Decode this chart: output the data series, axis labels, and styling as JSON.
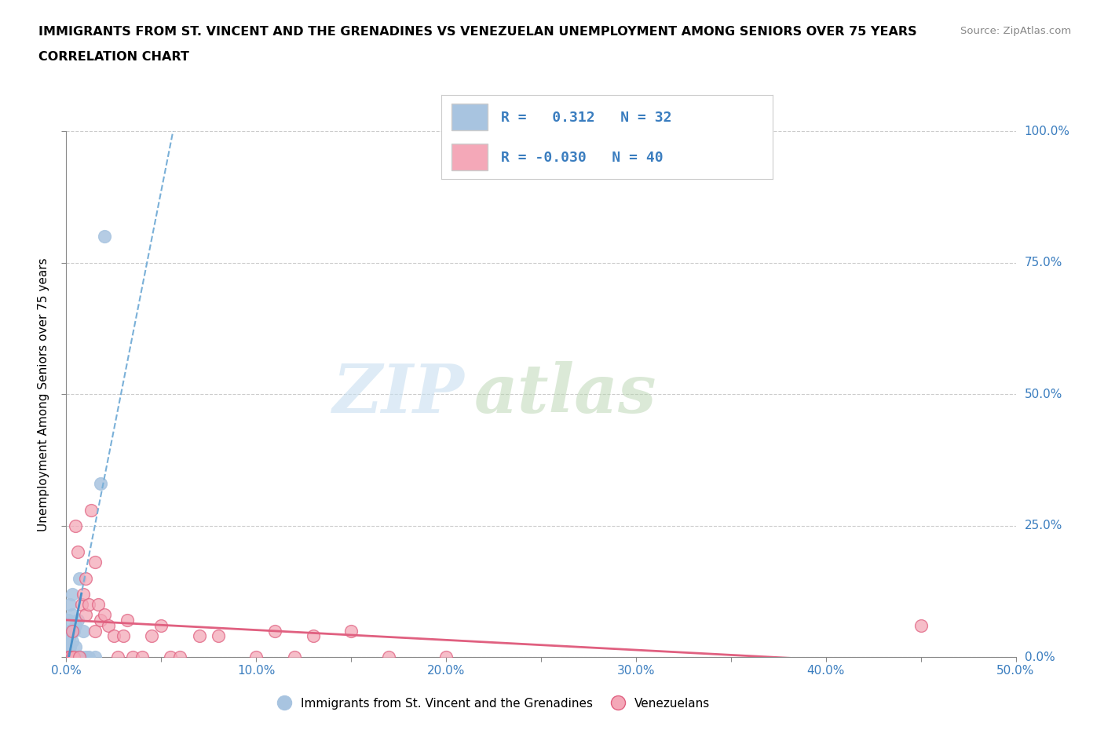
{
  "title_line1": "IMMIGRANTS FROM ST. VINCENT AND THE GRENADINES VS VENEZUELAN UNEMPLOYMENT AMONG SENIORS OVER 75 YEARS",
  "title_line2": "CORRELATION CHART",
  "source": "Source: ZipAtlas.com",
  "xlabel_ticks": [
    "0.0%",
    "",
    "10.0%",
    "",
    "20.0%",
    "",
    "30.0%",
    "",
    "40.0%",
    "",
    "50.0%"
  ],
  "xlabel_vals": [
    0.0,
    0.05,
    0.1,
    0.15,
    0.2,
    0.25,
    0.3,
    0.35,
    0.4,
    0.45,
    0.5
  ],
  "ylabel_ticks": [
    "0.0%",
    "25.0%",
    "50.0%",
    "75.0%",
    "100.0%"
  ],
  "ylabel_vals": [
    0.0,
    0.25,
    0.5,
    0.75,
    1.0
  ],
  "xlim": [
    0,
    0.5
  ],
  "ylim": [
    0,
    1.0
  ],
  "R_blue": 0.312,
  "N_blue": 32,
  "R_pink": -0.03,
  "N_pink": 40,
  "blue_color": "#a8c4e0",
  "blue_line_color": "#4a90c8",
  "blue_trend_dashed_color": "#7ab0d8",
  "pink_color": "#f4a8b8",
  "pink_line_color": "#e06080",
  "legend_label_blue": "Immigrants from St. Vincent and the Grenadines",
  "legend_label_pink": "Venezuelans",
  "watermark_zip": "ZIP",
  "watermark_atlas": "atlas",
  "blue_scatter_x": [
    0.0,
    0.0,
    0.0,
    0.0,
    0.001,
    0.001,
    0.001,
    0.001,
    0.001,
    0.002,
    0.002,
    0.002,
    0.002,
    0.003,
    0.003,
    0.003,
    0.003,
    0.004,
    0.004,
    0.005,
    0.005,
    0.005,
    0.006,
    0.006,
    0.007,
    0.008,
    0.009,
    0.01,
    0.012,
    0.015,
    0.018,
    0.02
  ],
  "blue_scatter_y": [
    0.0,
    0.02,
    0.0,
    0.01,
    0.0,
    0.03,
    0.05,
    0.07,
    0.0,
    0.04,
    0.1,
    0.0,
    0.02,
    0.08,
    0.12,
    0.0,
    0.03,
    0.05,
    0.0,
    0.06,
    0.0,
    0.02,
    0.07,
    0.0,
    0.15,
    0.0,
    0.05,
    0.0,
    0.0,
    0.0,
    0.33,
    0.8
  ],
  "pink_scatter_x": [
    0.001,
    0.002,
    0.003,
    0.003,
    0.004,
    0.005,
    0.006,
    0.007,
    0.008,
    0.009,
    0.01,
    0.01,
    0.012,
    0.013,
    0.015,
    0.015,
    0.017,
    0.018,
    0.02,
    0.022,
    0.025,
    0.027,
    0.03,
    0.032,
    0.035,
    0.04,
    0.045,
    0.05,
    0.055,
    0.06,
    0.07,
    0.08,
    0.1,
    0.11,
    0.12,
    0.13,
    0.15,
    0.17,
    0.2,
    0.45
  ],
  "pink_scatter_y": [
    0.0,
    0.0,
    0.05,
    0.0,
    0.0,
    0.25,
    0.2,
    0.0,
    0.1,
    0.12,
    0.08,
    0.15,
    0.1,
    0.28,
    0.18,
    0.05,
    0.1,
    0.07,
    0.08,
    0.06,
    0.04,
    0.0,
    0.04,
    0.07,
    0.0,
    0.0,
    0.04,
    0.06,
    0.0,
    0.0,
    0.04,
    0.04,
    0.0,
    0.05,
    0.0,
    0.04,
    0.05,
    0.0,
    0.0,
    0.06
  ],
  "blue_trend_x_start": -0.002,
  "blue_trend_x_end": 0.025,
  "pink_trend_x_start": 0.0,
  "pink_trend_x_end": 0.5
}
